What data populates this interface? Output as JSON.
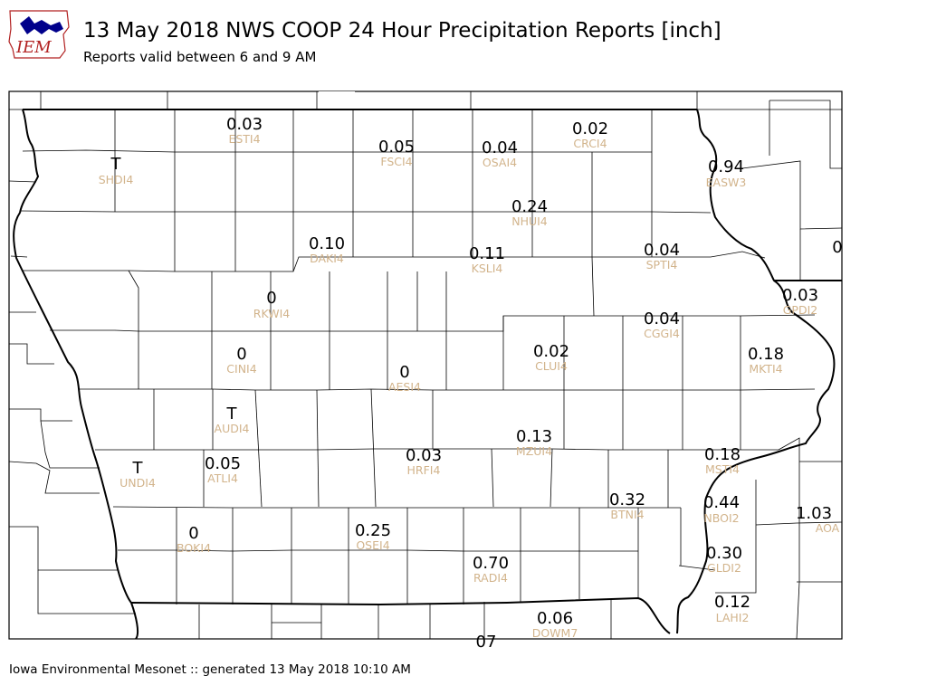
{
  "header": {
    "title": "13 May 2018 NWS COOP 24 Hour Precipitation Reports [inch]",
    "subtitle": "Reports valid between 6 and 9 AM",
    "logo_text": "IEM"
  },
  "footer": {
    "text": "Iowa Environmental Mesonet :: generated 13 May 2018 10:10 AM"
  },
  "colors": {
    "station_id": "#d2b48c",
    "value": "#000000",
    "logo_text": "#b22222",
    "logo_icon": "#00008b"
  },
  "stations": [
    {
      "id": "ESTI4",
      "value": "0.03"
    },
    {
      "id": "FSCI4",
      "value": "0.05"
    },
    {
      "id": "OSAI4",
      "value": "0.04"
    },
    {
      "id": "CRCI4",
      "value": "0.02"
    },
    {
      "id": "SHDI4",
      "value": "T"
    },
    {
      "id": "EASW3",
      "value": "0.94"
    },
    {
      "id": "NHUI4",
      "value": "0.24"
    },
    {
      "id": "DAKI4",
      "value": "0.10"
    },
    {
      "id": "KSLI4",
      "value": "0.11"
    },
    {
      "id": "SPTI4",
      "value": "0.04"
    },
    {
      "id": "RKWI4",
      "value": "0"
    },
    {
      "id": "GPDI2",
      "value": "0.03"
    },
    {
      "id": "CGGI4",
      "value": "0.04"
    },
    {
      "id": "CINI4",
      "value": "0"
    },
    {
      "id": "CLUI4",
      "value": "0.02"
    },
    {
      "id": "MKTI4",
      "value": "0.18"
    },
    {
      "id": "AESI4",
      "value": "0"
    },
    {
      "id": "AUDI4",
      "value": "T"
    },
    {
      "id": "MZUI4",
      "value": "0.13"
    },
    {
      "id": "UNDI4",
      "value": "T"
    },
    {
      "id": "ATLI4",
      "value": "0.05"
    },
    {
      "id": "HRFI4",
      "value": "0.03"
    },
    {
      "id": "MSTI4",
      "value": "0.18"
    },
    {
      "id": "BTNI4",
      "value": "0.32"
    },
    {
      "id": "NBOI2",
      "value": "0.44"
    },
    {
      "id": "AOA",
      "value": "1.03"
    },
    {
      "id": "BOKI4",
      "value": "0"
    },
    {
      "id": "OSEI4",
      "value": "0.25"
    },
    {
      "id": "GLDI2",
      "value": "0.30"
    },
    {
      "id": "RADI4",
      "value": "0.70"
    },
    {
      "id": "LAHI2",
      "value": "0.12"
    },
    {
      "id": "DOWM7",
      "value": "0.06"
    }
  ],
  "edge_values": [
    "0",
    "07"
  ]
}
